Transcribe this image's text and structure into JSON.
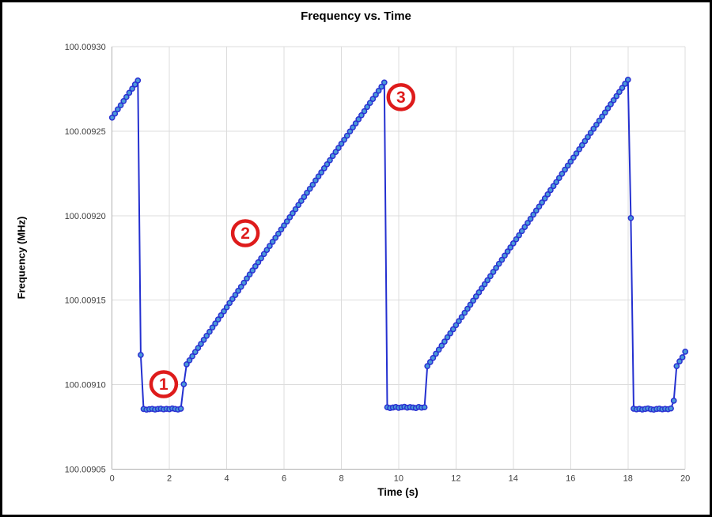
{
  "window": {
    "background": "#ffffff",
    "border_color": "#000000"
  },
  "chart_data": {
    "type": "line",
    "title": "Frequency vs. Time",
    "xlabel": "Time (s)",
    "ylabel": "Frequency (MHz)",
    "xlim": [
      0,
      20
    ],
    "ylim": [
      100.00905,
      100.0093
    ],
    "grid": true,
    "legend": "none",
    "x_start": 0,
    "x_step": 0.1,
    "x_ticks": {
      "values": [
        0,
        2,
        4,
        6,
        8,
        10,
        12,
        14,
        16,
        18,
        20
      ],
      "labels": [
        "0",
        "2",
        "4",
        "6",
        "8",
        "10",
        "12",
        "14",
        "16",
        "18",
        "20"
      ]
    },
    "y_ticks": {
      "values": [
        100.00905,
        100.0091,
        100.00915,
        100.0092,
        100.00925,
        100.0093
      ],
      "labels": [
        "100.00905",
        "100.00910",
        "100.00915",
        "100.00920",
        "100.00925",
        "100.00930"
      ]
    },
    "series": [
      {
        "name": "frequency",
        "line_color": "#2430d0",
        "marker_fill": "#4a9ad8",
        "marker_stroke": "#2a30d2",
        "values": [
          100.009258,
          100.0092604,
          100.0092629,
          100.0092653,
          100.0092678,
          100.0092702,
          100.0092727,
          100.0092751,
          100.0092776,
          100.00928,
          100.0091176,
          100.0090856,
          100.0090852,
          100.0090855,
          100.0090857,
          100.0090853,
          100.0090856,
          100.0090858,
          100.0090854,
          100.0090857,
          100.0090855,
          100.0090859,
          100.0090856,
          100.0090853,
          100.0090858,
          100.0091003,
          100.009112,
          100.0091144,
          100.0091168,
          100.0091193,
          100.0091217,
          100.0091241,
          100.0091265,
          100.0091289,
          100.0091313,
          100.0091338,
          100.0091362,
          100.0091386,
          100.009141,
          100.0091434,
          100.0091458,
          100.0091483,
          100.0091507,
          100.0091531,
          100.0091555,
          100.0091579,
          100.0091603,
          100.0091628,
          100.0091652,
          100.0091676,
          100.00917,
          100.0091724,
          100.0091748,
          100.0091773,
          100.0091797,
          100.0091821,
          100.0091845,
          100.0091869,
          100.0091893,
          100.0091918,
          100.0091942,
          100.0091966,
          100.009199,
          100.0092014,
          100.0092038,
          100.0092063,
          100.0092087,
          100.0092111,
          100.0092135,
          100.0092159,
          100.0092183,
          100.0092208,
          100.0092232,
          100.0092256,
          100.009228,
          100.0092304,
          100.0092328,
          100.0092353,
          100.0092377,
          100.0092401,
          100.0092425,
          100.0092449,
          100.0092473,
          100.0092498,
          100.0092522,
          100.0092546,
          100.009257,
          100.0092594,
          100.0092618,
          100.0092643,
          100.0092667,
          100.0092691,
          100.0092715,
          100.0092739,
          100.0092763,
          100.0092788,
          100.0090866,
          100.0090862,
          100.0090865,
          100.0090868,
          100.0090863,
          100.0090866,
          100.0090869,
          100.0090864,
          100.0090867,
          100.0090865,
          100.0090862,
          100.0090868,
          100.0090864,
          100.0090866,
          100.009111,
          100.0091134,
          100.0091158,
          100.0091183,
          100.0091207,
          100.0091231,
          100.0091255,
          100.009128,
          100.0091304,
          100.0091328,
          100.0091352,
          100.0091376,
          100.00914,
          100.0091425,
          100.0091449,
          100.0091473,
          100.0091497,
          100.0091522,
          100.0091546,
          100.009157,
          100.0091594,
          100.0091618,
          100.0091642,
          100.0091667,
          100.0091691,
          100.0091715,
          100.0091739,
          100.0091764,
          100.0091788,
          100.0091812,
          100.0091836,
          100.009186,
          100.0091884,
          100.0091909,
          100.0091933,
          100.0091957,
          100.0091981,
          100.0092006,
          100.009203,
          100.0092054,
          100.0092078,
          100.0092102,
          100.0092126,
          100.0092151,
          100.0092175,
          100.0092199,
          100.0092223,
          100.0092248,
          100.0092272,
          100.0092296,
          100.009232,
          100.0092344,
          100.0092368,
          100.0092393,
          100.0092417,
          100.0092441,
          100.0092465,
          100.009249,
          100.0092514,
          100.0092538,
          100.0092562,
          100.0092586,
          100.009261,
          100.0092635,
          100.0092659,
          100.0092683,
          100.0092707,
          100.0092732,
          100.0092756,
          100.009278,
          100.0092804,
          100.0091986,
          100.0090858,
          100.0090854,
          100.0090857,
          100.0090853,
          100.0090856,
          100.0090859,
          100.0090855,
          100.0090852,
          100.0090856,
          100.0090858,
          100.0090854,
          100.0090857,
          100.0090855,
          100.0090859,
          100.0090905,
          100.009111,
          100.0091138,
          100.0091162,
          100.0091195
        ]
      }
    ],
    "annotations": [
      {
        "label": "1",
        "x": 1.8,
        "y": 100.0091003
      },
      {
        "label": "2",
        "x": 4.65,
        "y": 100.0091896
      },
      {
        "label": "3",
        "x": 10.08,
        "y": 100.0092701
      }
    ],
    "annotation_color": "#de1b1b",
    "gridline_color": "#dcdcdc",
    "axis_line_color": "#b0b0b0",
    "tick_label_color": "#404040"
  }
}
